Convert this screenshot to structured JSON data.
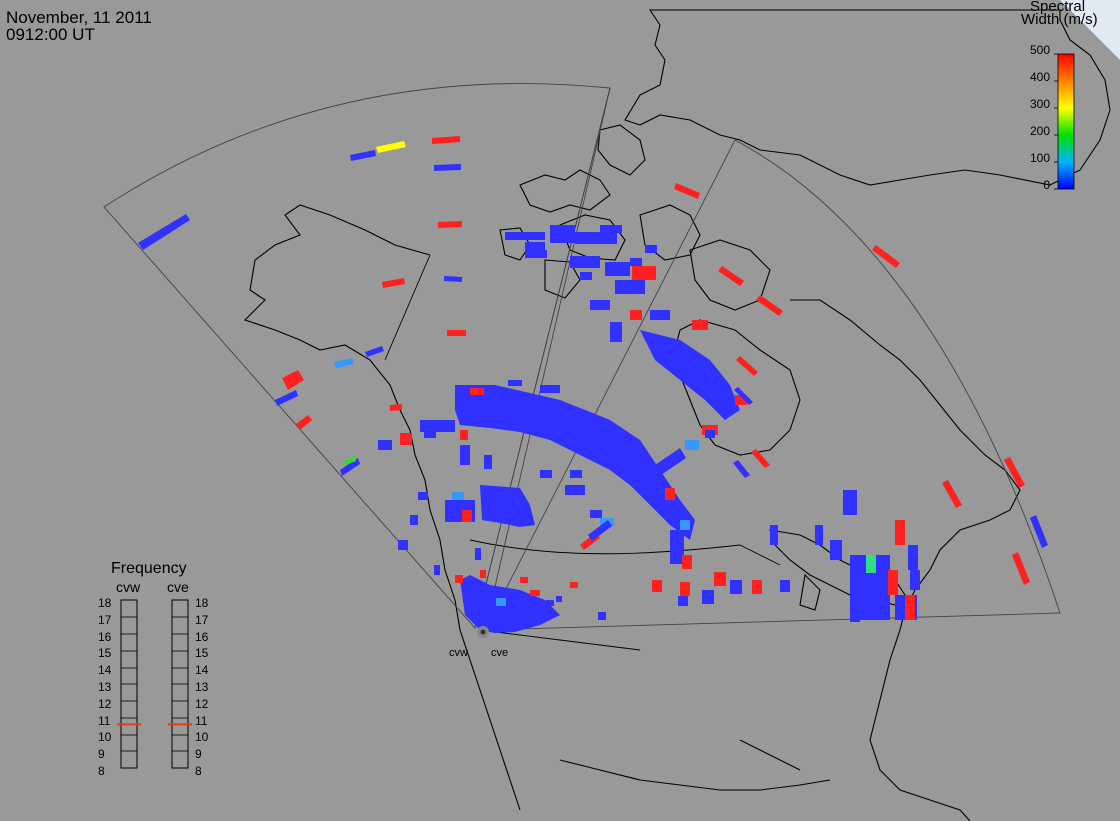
{
  "header": {
    "date": "November, 11 2011",
    "time": "0912:00 UT"
  },
  "colorbar": {
    "title_line1": "Spectral",
    "title_line2": "Width (m/s)",
    "ticks": [
      "500",
      "400",
      "300",
      "200",
      "100",
      "0"
    ],
    "range": [
      0,
      500
    ],
    "scale": "rainbow (blue-cyan-green-yellow-orange-red)"
  },
  "frequency_panel": {
    "title": "Frequency",
    "radars": [
      {
        "name": "cvw",
        "selected_mhz": 10.6,
        "marker_color": "#e04010"
      },
      {
        "name": "cve",
        "selected_mhz": 10.6,
        "marker_color": "#e04010"
      }
    ],
    "scale": [
      "18",
      "17",
      "16",
      "15",
      "14",
      "13",
      "12",
      "11",
      "10",
      "9",
      "8"
    ]
  },
  "sites": [
    {
      "name": "cvw"
    },
    {
      "name": "cve"
    }
  ],
  "colors": {
    "background": "#999999",
    "map_lines": "#000000",
    "fov_lines": "#444444"
  }
}
